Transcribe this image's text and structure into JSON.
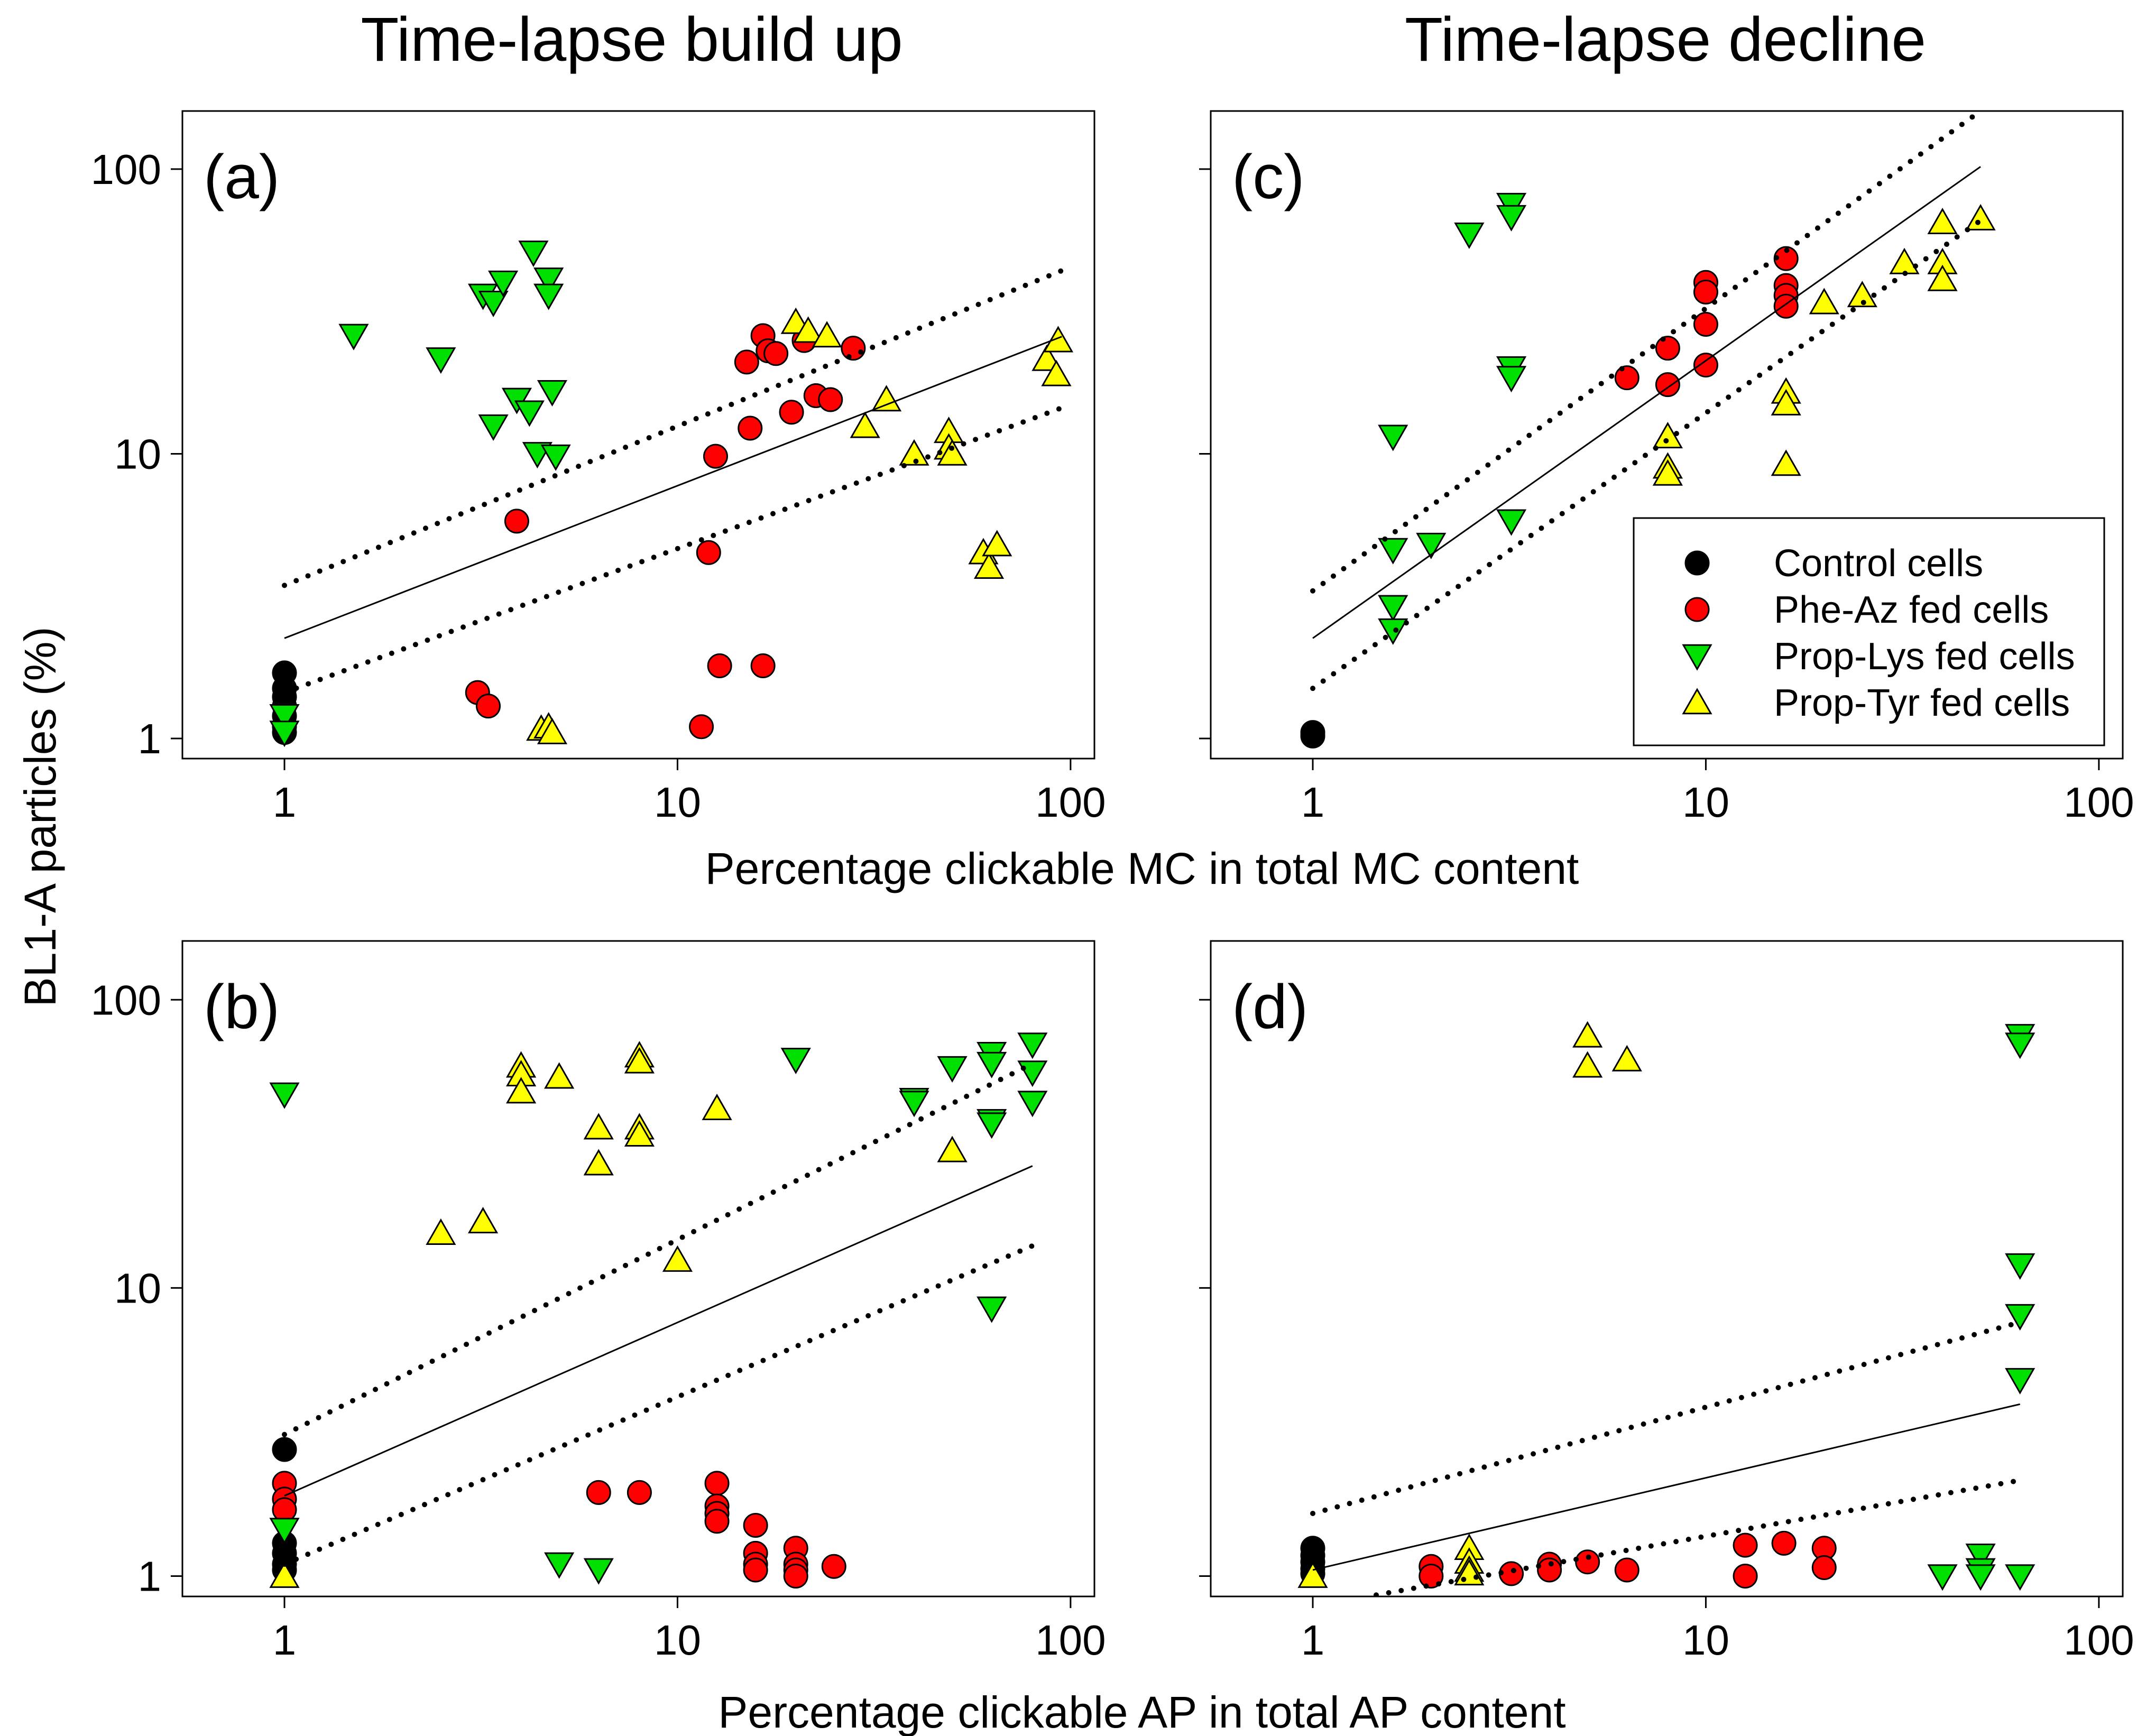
{
  "figure": {
    "column_titles": [
      "Time-lapse build up",
      "Time-lapse decline"
    ],
    "ylabel": "BL1-A particles (%)",
    "xlabel_top": "Percentage clickable MC in total MC content",
    "xlabel_bottom": "Percentage clickable AP in total AP content"
  },
  "legend": {
    "entries": [
      {
        "label": "Control cells",
        "series": "control"
      },
      {
        "label": "Phe-Az fed cells",
        "series": "pheaz"
      },
      {
        "label": "Prop-Lys fed cells",
        "series": "proplys"
      },
      {
        "label": "Prop-Tyr fed cells",
        "series": "proptyr"
      }
    ]
  },
  "colors": {
    "control": "#000000",
    "pheaz": "#ff0000",
    "proplys": "#00e000",
    "proptyr": "#ffff00",
    "stroke": "#000000"
  },
  "chart_data": [
    {
      "id": "a",
      "panel_label": "(a)",
      "type": "scatter",
      "xscale": "log",
      "yscale": "log",
      "xlim": [
        0.55,
        115
      ],
      "ylim": [
        0.85,
        160
      ],
      "xticks": [
        1,
        10,
        100
      ],
      "yticks": [
        1,
        10,
        100
      ],
      "show_xtick_labels": true,
      "show_ytick_labels": true,
      "series": [
        {
          "name": "Control cells",
          "key": "control",
          "marker": "circle",
          "points": [
            [
              1,
              1.7
            ],
            [
              1,
              1.5
            ],
            [
              1,
              1.4
            ],
            [
              1,
              1.3
            ],
            [
              1,
              1.2
            ],
            [
              1,
              1.1
            ],
            [
              1,
              1.05
            ]
          ]
        },
        {
          "name": "Phe-Az fed cells",
          "key": "pheaz",
          "marker": "circle",
          "points": [
            [
              3.9,
              5.8
            ],
            [
              3.1,
              1.45
            ],
            [
              3.3,
              1.3
            ],
            [
              11.5,
              1.1
            ],
            [
              12,
              4.5
            ],
            [
              12.5,
              9.8
            ],
            [
              12.8,
              1.8
            ],
            [
              16.5,
              1.8
            ],
            [
              15,
              21
            ],
            [
              15.3,
              12.3
            ],
            [
              16.5,
              26
            ],
            [
              17,
              23
            ],
            [
              17.8,
              22.5
            ],
            [
              19.5,
              14
            ],
            [
              21,
              25
            ],
            [
              22.5,
              16
            ],
            [
              24.5,
              15.5
            ],
            [
              28,
              23.5
            ]
          ]
        },
        {
          "name": "Prop-Lys fed cells",
          "key": "proplys",
          "marker": "triangle-down",
          "points": [
            [
              1.5,
              26
            ],
            [
              2.5,
              21.5
            ],
            [
              3.2,
              36
            ],
            [
              3.4,
              34
            ],
            [
              3.6,
              40
            ],
            [
              3.4,
              12.5
            ],
            [
              3.9,
              15.5
            ],
            [
              4.2,
              14
            ],
            [
              4.3,
              51
            ],
            [
              4.4,
              10
            ],
            [
              4.7,
              41
            ],
            [
              4.7,
              36
            ],
            [
              4.8,
              16.5
            ],
            [
              4.9,
              9.8
            ],
            [
              1,
              1.2
            ],
            [
              1,
              1.05
            ]
          ]
        },
        {
          "name": "Prop-Tyr fed cells",
          "key": "proptyr",
          "marker": "triangle-up",
          "points": [
            [
              4.5,
              1.08
            ],
            [
              4.7,
              1.1
            ],
            [
              4.8,
              1.05
            ],
            [
              20,
              29
            ],
            [
              21.5,
              27
            ],
            [
              24,
              26
            ],
            [
              30,
              12.5
            ],
            [
              34,
              15.5
            ],
            [
              40,
              10
            ],
            [
              49,
              12
            ],
            [
              49,
              10.5
            ],
            [
              50,
              10
            ],
            [
              60,
              4.5
            ],
            [
              62,
              4
            ],
            [
              65,
              4.8
            ],
            [
              87,
              21.5
            ],
            [
              92,
              19
            ],
            [
              93,
              25
            ]
          ]
        }
      ],
      "fit": {
        "x": [
          1,
          95
        ],
        "y": [
          2.25,
          25.8
        ]
      },
      "ci_upper": {
        "x": [
          1,
          95
        ],
        "y": [
          3.45,
          44
        ]
      },
      "ci_lower": {
        "x": [
          1,
          95
        ],
        "y": [
          1.45,
          14.5
        ]
      }
    },
    {
      "id": "c",
      "panel_label": "(c)",
      "type": "scatter",
      "xscale": "log",
      "yscale": "log",
      "xlim": [
        0.55,
        115
      ],
      "ylim": [
        0.85,
        160
      ],
      "xticks": [
        1,
        10,
        100
      ],
      "yticks": [
        1,
        10,
        100
      ],
      "show_xtick_labels": true,
      "show_ytick_labels": false,
      "series": [
        {
          "name": "Control cells",
          "key": "control",
          "marker": "circle",
          "points": [
            [
              1,
              1.05
            ],
            [
              1,
              1.02
            ]
          ]
        },
        {
          "name": "Phe-Az fed cells",
          "key": "pheaz",
          "marker": "circle",
          "points": [
            [
              6.3,
              18.5
            ],
            [
              8,
              23.5
            ],
            [
              8,
              17.5
            ],
            [
              10,
              40
            ],
            [
              10,
              37
            ],
            [
              10,
              28.5
            ],
            [
              10,
              20.5
            ],
            [
              16,
              48.5
            ],
            [
              16,
              39
            ],
            [
              16,
              36
            ],
            [
              16,
              33
            ]
          ]
        },
        {
          "name": "Prop-Lys fed cells",
          "key": "proplys",
          "marker": "triangle-down",
          "points": [
            [
              1.6,
              11.5
            ],
            [
              1.6,
              4.6
            ],
            [
              1.6,
              2.9
            ],
            [
              1.6,
              2.4
            ],
            [
              2,
              4.8
            ],
            [
              2.5,
              59
            ],
            [
              3.2,
              75
            ],
            [
              3.2,
              68
            ],
            [
              3.2,
              20
            ],
            [
              3.2,
              18.5
            ],
            [
              3.2,
              5.8
            ]
          ]
        },
        {
          "name": "Prop-Tyr fed cells",
          "key": "proptyr",
          "marker": "triangle-up",
          "points": [
            [
              8,
              11.5
            ],
            [
              8,
              9
            ],
            [
              8,
              8.5
            ],
            [
              16,
              16.5
            ],
            [
              16,
              15
            ],
            [
              16,
              9.2
            ],
            [
              20,
              34
            ],
            [
              25,
              36
            ],
            [
              32,
              47
            ],
            [
              40,
              65
            ],
            [
              40,
              47
            ],
            [
              40,
              41
            ],
            [
              50,
              67
            ]
          ]
        }
      ],
      "fit": {
        "x": [
          1,
          50
        ],
        "y": [
          2.25,
          102
        ]
      },
      "ci_upper": {
        "x": [
          1,
          50
        ],
        "y": [
          3.3,
          160
        ]
      },
      "ci_lower": {
        "x": [
          1,
          50
        ],
        "y": [
          1.5,
          66
        ]
      }
    },
    {
      "id": "b",
      "panel_label": "(b)",
      "type": "scatter",
      "xscale": "log",
      "yscale": "log",
      "xlim": [
        0.55,
        115
      ],
      "ylim": [
        0.85,
        160
      ],
      "xticks": [
        1,
        10,
        100
      ],
      "yticks": [
        1,
        10,
        100
      ],
      "show_xtick_labels": true,
      "show_ytick_labels": true,
      "series": [
        {
          "name": "Control cells",
          "key": "control",
          "marker": "circle",
          "points": [
            [
              1,
              2.75
            ],
            [
              1,
              1.3
            ],
            [
              1,
              1.2
            ],
            [
              1,
              1.1
            ],
            [
              1,
              1.05
            ]
          ]
        },
        {
          "name": "Phe-Az fed cells",
          "key": "pheaz",
          "marker": "circle",
          "points": [
            [
              1,
              2.1
            ],
            [
              1,
              1.85
            ],
            [
              1,
              1.7
            ],
            [
              6.3,
              1.95
            ],
            [
              8,
              1.95
            ],
            [
              12.6,
              2.1
            ],
            [
              12.6,
              1.75
            ],
            [
              12.6,
              1.65
            ],
            [
              12.6,
              1.55
            ],
            [
              15.8,
              1.5
            ],
            [
              15.8,
              1.2
            ],
            [
              15.8,
              1.1
            ],
            [
              15.8,
              1.05
            ],
            [
              20,
              1.25
            ],
            [
              20,
              1.1
            ],
            [
              20,
              1.05
            ],
            [
              20,
              1.0
            ],
            [
              25,
              1.08
            ]
          ]
        },
        {
          "name": "Prop-Lys fed cells",
          "key": "proplys",
          "marker": "triangle-down",
          "points": [
            [
              1,
              47
            ],
            [
              1,
              1.45
            ],
            [
              5,
              1.1
            ],
            [
              6.3,
              1.05
            ],
            [
              20,
              62
            ],
            [
              40,
              45
            ],
            [
              40,
              44
            ],
            [
              50,
              58
            ],
            [
              63,
              65
            ],
            [
              63,
              60
            ],
            [
              63,
              38
            ],
            [
              63,
              37
            ],
            [
              63,
              8.5
            ],
            [
              80,
              70
            ],
            [
              80,
              56
            ],
            [
              80,
              44
            ]
          ]
        },
        {
          "name": "Prop-Tyr fed cells",
          "key": "proptyr",
          "marker": "triangle-up",
          "points": [
            [
              1,
              1.0
            ],
            [
              2.5,
              15.5
            ],
            [
              3.2,
              17
            ],
            [
              4,
              59
            ],
            [
              4,
              55
            ],
            [
              4,
              48
            ],
            [
              5,
              54
            ],
            [
              6.3,
              36
            ],
            [
              6.3,
              27
            ],
            [
              8,
              64
            ],
            [
              8,
              61
            ],
            [
              8,
              36
            ],
            [
              8,
              34
            ],
            [
              10,
              12.5
            ],
            [
              12.6,
              42
            ],
            [
              50,
              30
            ]
          ]
        }
      ],
      "fit": {
        "x": [
          1,
          80
        ],
        "y": [
          1.9,
          26.5
        ]
      },
      "ci_upper": {
        "x": [
          1,
          80
        ],
        "y": [
          3.1,
          60
        ]
      },
      "ci_lower": {
        "x": [
          1,
          80
        ],
        "y": [
          1.1,
          14
        ]
      }
    },
    {
      "id": "d",
      "panel_label": "(d)",
      "type": "scatter",
      "xscale": "log",
      "yscale": "log",
      "xlim": [
        0.55,
        115
      ],
      "ylim": [
        0.85,
        160
      ],
      "xticks": [
        1,
        10,
        100
      ],
      "yticks": [
        1,
        10,
        100
      ],
      "show_xtick_labels": true,
      "show_ytick_labels": false,
      "series": [
        {
          "name": "Control cells",
          "key": "control",
          "marker": "circle",
          "points": [
            [
              1,
              1.25
            ],
            [
              1,
              1.18
            ],
            [
              1,
              1.12
            ],
            [
              1,
              1.06
            ],
            [
              1,
              1.02
            ]
          ]
        },
        {
          "name": "Phe-Az fed cells",
          "key": "pheaz",
          "marker": "circle",
          "points": [
            [
              2,
              1.08
            ],
            [
              2,
              1.0
            ],
            [
              3.2,
              1.02
            ],
            [
              4,
              1.1
            ],
            [
              4,
              1.05
            ],
            [
              5,
              1.12
            ],
            [
              6.3,
              1.05
            ],
            [
              12.6,
              1.28
            ],
            [
              12.6,
              1.0
            ],
            [
              15.8,
              1.3
            ],
            [
              20,
              1.25
            ],
            [
              20,
              1.07
            ]
          ]
        },
        {
          "name": "Prop-Lys fed cells",
          "key": "proplys",
          "marker": "triangle-down",
          "points": [
            [
              40,
              1.0
            ],
            [
              50,
              1.18
            ],
            [
              50,
              1.05
            ],
            [
              50,
              1.0
            ],
            [
              63,
              75
            ],
            [
              63,
              70
            ],
            [
              63,
              12
            ],
            [
              63,
              8
            ],
            [
              63,
              4.8
            ],
            [
              63,
              1.0
            ]
          ]
        },
        {
          "name": "Prop-Tyr fed cells",
          "key": "proptyr",
          "marker": "triangle-up",
          "points": [
            [
              1,
              1.0
            ],
            [
              2.5,
              1.25
            ],
            [
              2.5,
              1.12
            ],
            [
              2.5,
              1.05
            ],
            [
              2.5,
              1.02
            ],
            [
              5,
              75
            ],
            [
              5,
              59
            ],
            [
              6.3,
              62
            ]
          ]
        }
      ],
      "fit": {
        "x": [
          1,
          63
        ],
        "y": [
          1.05,
          3.95
        ]
      },
      "ci_upper": {
        "x": [
          1,
          63
        ],
        "y": [
          1.65,
          7.6
        ]
      },
      "ci_lower": {
        "x": [
          1.45,
          63
        ],
        "y": [
          0.86,
          2.15
        ]
      }
    }
  ]
}
